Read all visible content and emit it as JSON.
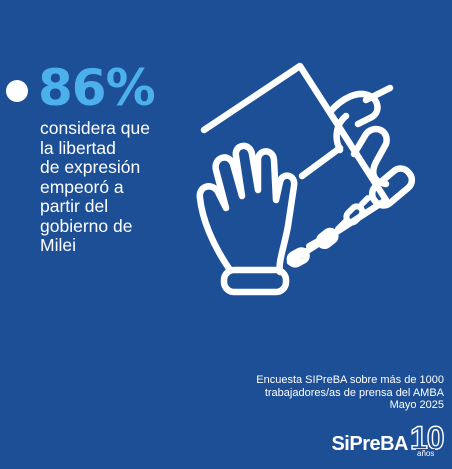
{
  "colors": {
    "background": "#1d4f96",
    "accent": "#4bb0ec",
    "text": "#ffffff"
  },
  "headline": {
    "stat": "86%",
    "description": "considera que\nla libertad\nde expresión\nempeoró a\npartir del\ngobierno de\nMilei"
  },
  "illustration": {
    "icon": "chained-hand-writing-on-paper-icon"
  },
  "source": {
    "line1": "Encuesta SIPreBA sobre más de 1000",
    "line2": "trabajadores/as de prensa del AMBA",
    "line3": "Mayo 2025"
  },
  "logo": {
    "name": "SiPreBA",
    "anniversary_number": "10",
    "anniversary_unit": "años"
  }
}
